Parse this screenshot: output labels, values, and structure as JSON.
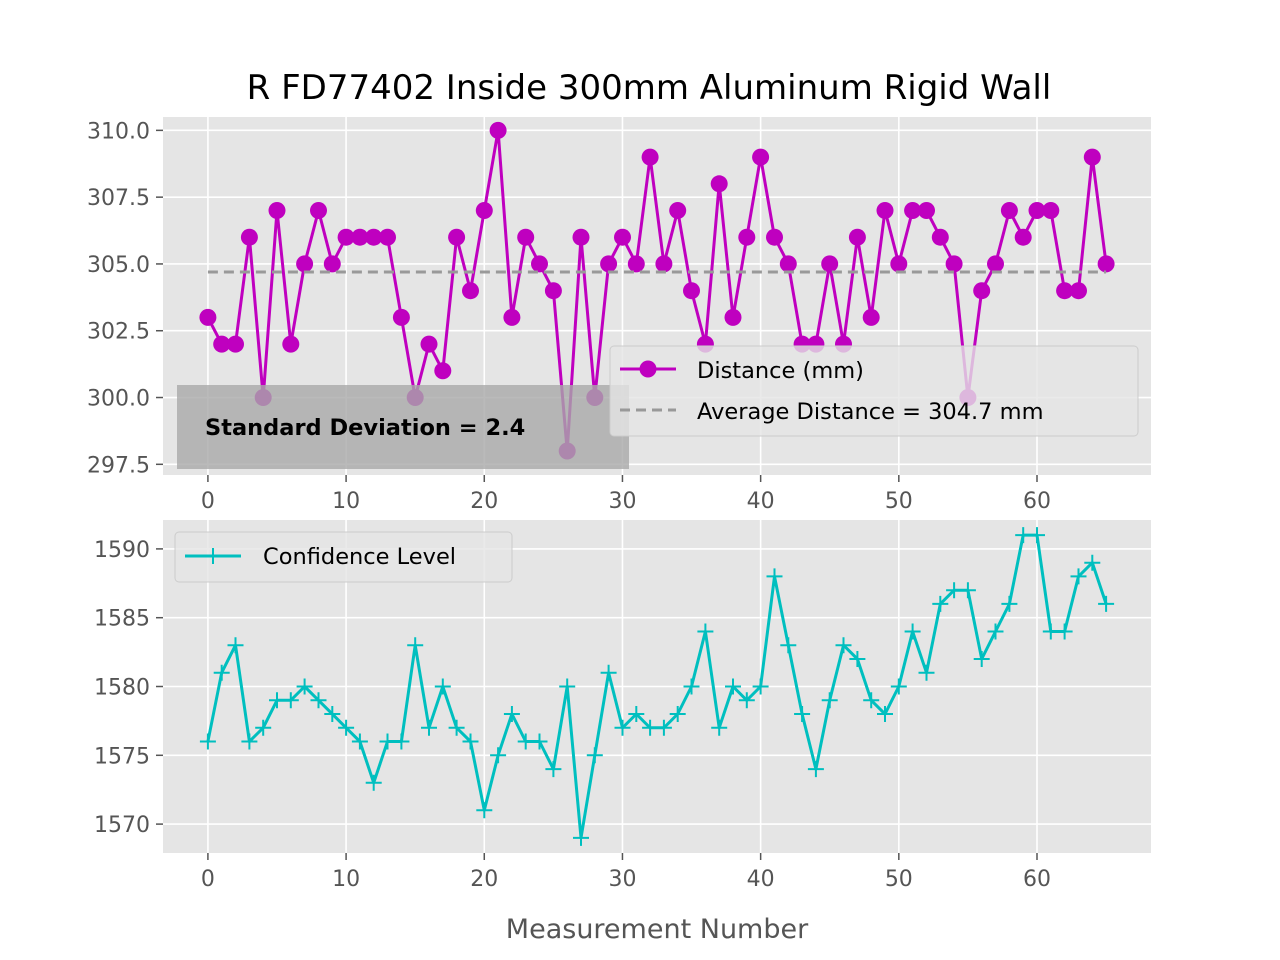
{
  "chart_data": [
    {
      "type": "line",
      "title": "R FD77402 Inside 300mm Aluminum Rigid Wall",
      "xlabel": "",
      "ylabel": "",
      "xlim": [
        -3.25,
        68.25
      ],
      "ylim": [
        297.1,
        310.5
      ],
      "xticks": [
        0,
        10,
        20,
        30,
        40,
        50,
        60
      ],
      "yticks": [
        297.5,
        300.0,
        302.5,
        305.0,
        307.5,
        310.0
      ],
      "ytick_labels": [
        "297.5",
        "300.0",
        "302.5",
        "305.0",
        "307.5",
        "310.0"
      ],
      "grid": true,
      "legend_position": "lower-right",
      "series": [
        {
          "name": "Distance (mm)",
          "color": "#bf00bf",
          "marker": "circle",
          "x": [
            0,
            1,
            2,
            3,
            4,
            5,
            6,
            7,
            8,
            9,
            10,
            11,
            12,
            13,
            14,
            15,
            16,
            17,
            18,
            19,
            20,
            21,
            22,
            23,
            24,
            25,
            26,
            27,
            28,
            29,
            30,
            31,
            32,
            33,
            34,
            35,
            36,
            37,
            38,
            39,
            40,
            41,
            42,
            43,
            44,
            45,
            46,
            47,
            48,
            49,
            50,
            51,
            52,
            53,
            54,
            55,
            56,
            57,
            58,
            59,
            60,
            61,
            62,
            63,
            64,
            65
          ],
          "values": [
            303,
            302,
            302,
            306,
            300,
            307,
            302,
            305,
            307,
            305,
            306,
            306,
            306,
            306,
            303,
            300,
            302,
            301,
            306,
            304,
            307,
            310,
            303,
            306,
            305,
            304,
            298,
            306,
            300,
            305,
            306,
            305,
            309,
            305,
            307,
            304,
            302,
            308,
            303,
            306,
            309,
            306,
            305,
            302,
            302,
            305,
            302,
            306,
            303,
            307,
            305,
            307,
            307,
            306,
            305,
            300,
            304,
            305,
            307,
            306,
            307,
            307,
            304,
            304,
            309,
            305
          ]
        },
        {
          "name": "Average Distance = 304.7 mm",
          "color": "#999999",
          "style": "dashed",
          "x": [
            0,
            65
          ],
          "values": [
            304.7,
            304.7
          ]
        }
      ],
      "annotations": [
        "Standard Deviation = 2.4"
      ]
    },
    {
      "type": "line",
      "title": "",
      "xlabel": "Measurement Number",
      "ylabel": "",
      "xlim": [
        -3.25,
        68.25
      ],
      "ylim": [
        1567.9,
        1592.1
      ],
      "xticks": [
        0,
        10,
        20,
        30,
        40,
        50,
        60
      ],
      "yticks": [
        1570,
        1575,
        1580,
        1585,
        1590
      ],
      "grid": true,
      "legend_position": "upper-left",
      "series": [
        {
          "name": "Confidence Level",
          "color": "#00bfbf",
          "marker": "plus",
          "x": [
            0,
            1,
            2,
            3,
            4,
            5,
            6,
            7,
            8,
            9,
            10,
            11,
            12,
            13,
            14,
            15,
            16,
            17,
            18,
            19,
            20,
            21,
            22,
            23,
            24,
            25,
            26,
            27,
            28,
            29,
            30,
            31,
            32,
            33,
            34,
            35,
            36,
            37,
            38,
            39,
            40,
            41,
            42,
            43,
            44,
            45,
            46,
            47,
            48,
            49,
            50,
            51,
            52,
            53,
            54,
            55,
            56,
            57,
            58,
            59,
            60,
            61,
            62,
            63,
            64,
            65
          ],
          "values": [
            1576,
            1581,
            1583,
            1576,
            1577,
            1579,
            1579,
            1580,
            1579,
            1578,
            1577,
            1576,
            1573,
            1576,
            1576,
            1583,
            1577,
            1580,
            1577,
            1576,
            1571,
            1575,
            1578,
            1576,
            1576,
            1574,
            1580,
            1569,
            1575,
            1581,
            1577,
            1578,
            1577,
            1577,
            1578,
            1580,
            1584,
            1577,
            1580,
            1579,
            1580,
            1588,
            1583,
            1578,
            1574,
            1579,
            1583,
            1582,
            1579,
            1578,
            1580,
            1584,
            1581,
            1586,
            1587,
            1587,
            1582,
            1584,
            1586,
            1591,
            1591,
            1584,
            1584,
            1588,
            1589,
            1586
          ]
        }
      ]
    }
  ]
}
